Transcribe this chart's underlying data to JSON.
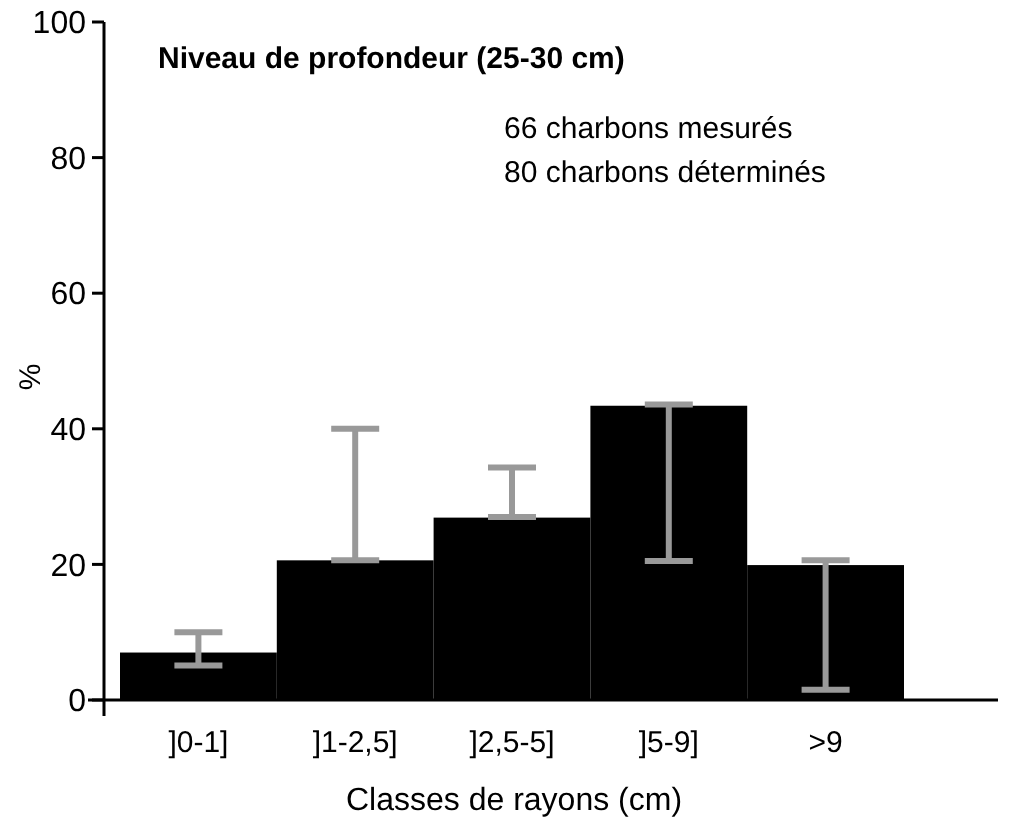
{
  "chart_data": {
    "type": "bar",
    "title": "Niveau de profondeur (25-30 cm)",
    "xlabel": "Classes de rayons (cm)",
    "ylabel": "%",
    "annotations": [
      "66 charbons mesurés",
      "80 charbons déterminés"
    ],
    "categories": [
      "]0-1]",
      "]1-2,5]",
      "]2,5-5]",
      "]5-9]",
      ">9"
    ],
    "values": [
      7,
      20.6,
      26.9,
      43.4,
      19.9
    ],
    "errors": [
      [
        5.1,
        10
      ],
      [
        20.6,
        40
      ],
      [
        27,
        34.3
      ],
      [
        20.5,
        43.6
      ],
      [
        1.5,
        20.6
      ]
    ],
    "color": "#000000",
    "ylim": [
      0,
      100
    ],
    "yticks": [
      0,
      20,
      40,
      60,
      80,
      100
    ]
  }
}
